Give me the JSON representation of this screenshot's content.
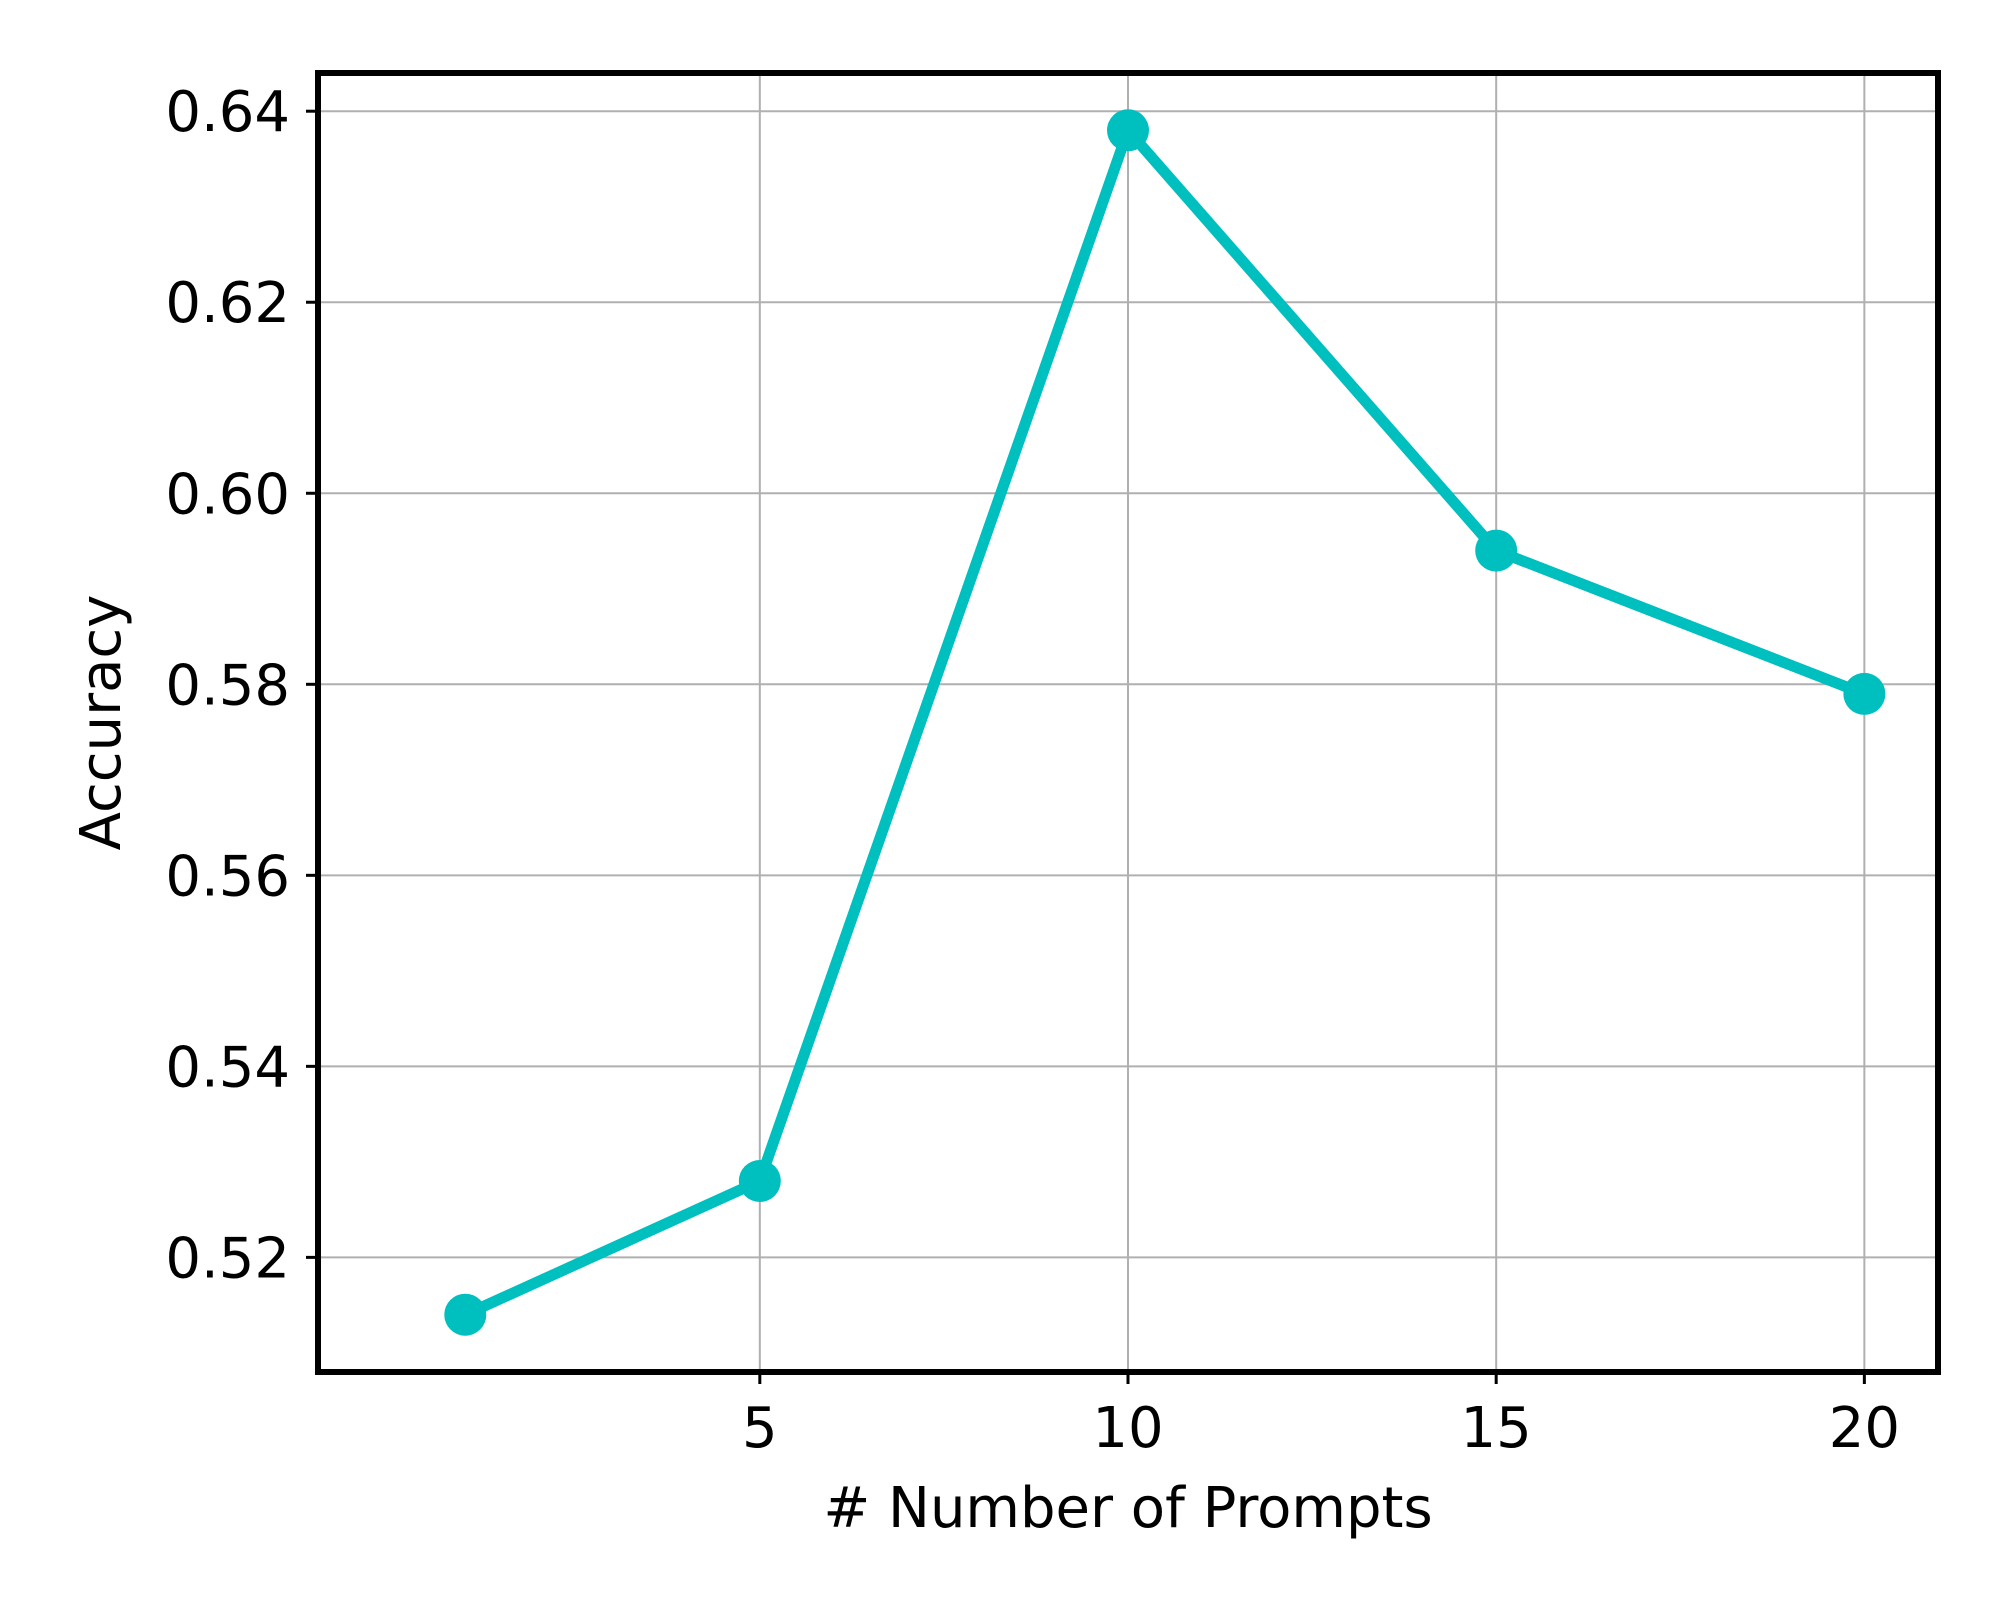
{
  "chart_data": {
    "type": "line",
    "title": "",
    "xlabel": "# Number of Prompts",
    "ylabel": "Accuracy",
    "xlim": [
      -1,
      21
    ],
    "ylim": [
      0.508,
      0.644
    ],
    "xticks": [
      5,
      10,
      15,
      20
    ],
    "xtick_labels": [
      "5",
      "10",
      "15",
      "20"
    ],
    "yticks": [
      0.52,
      0.54,
      0.56,
      0.58,
      0.6,
      0.62,
      0.64
    ],
    "ytick_labels": [
      "0.52",
      "0.54",
      "0.56",
      "0.58",
      "0.60",
      "0.62",
      "0.64"
    ],
    "grid": true,
    "legend": "none",
    "series": [
      {
        "x": [
          1,
          5,
          10,
          15,
          20
        ],
        "y": [
          0.514,
          0.528,
          0.638,
          0.594,
          0.579
        ],
        "color": "#00bfbf",
        "marker": "circle"
      }
    ]
  }
}
